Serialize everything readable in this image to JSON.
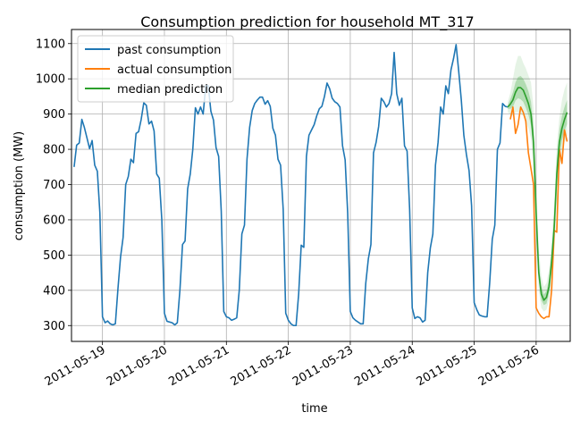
{
  "chart_data": {
    "type": "line",
    "title": "Consumption prediction for household MT_317",
    "xlabel": "time",
    "ylabel": "consumption (MW)",
    "x_unit": "days since 2011-05-19 00:00",
    "xlim": [
      -0.5,
      7.55
    ],
    "ylim": [
      255,
      1140
    ],
    "grid": true,
    "legend_position": "upper left",
    "x_ticks": [
      {
        "value": 0,
        "label": "2011-05-19"
      },
      {
        "value": 1,
        "label": "2011-05-20"
      },
      {
        "value": 2,
        "label": "2011-05-21"
      },
      {
        "value": 3,
        "label": "2011-05-22"
      },
      {
        "value": 4,
        "label": "2011-05-23"
      },
      {
        "value": 5,
        "label": "2011-05-24"
      },
      {
        "value": 6,
        "label": "2011-05-25"
      },
      {
        "value": 7,
        "label": "2011-05-26"
      }
    ],
    "y_ticks": [
      300,
      400,
      500,
      600,
      700,
      800,
      900,
      1000,
      1100
    ],
    "colors": {
      "past": "#1f77b4",
      "actual": "#ff7f0e",
      "median": "#2ca02c",
      "band": "#2ca02c"
    },
    "series": [
      {
        "name": "past consumption",
        "x": [
          -0.458,
          -0.417,
          -0.375,
          -0.333,
          -0.292,
          -0.25,
          -0.208,
          -0.167,
          -0.125,
          -0.083,
          -0.042,
          0.0,
          0.042,
          0.083,
          0.125,
          0.167,
          0.208,
          0.25,
          0.292,
          0.333,
          0.375,
          0.417,
          0.458,
          0.5,
          0.542,
          0.583,
          0.625,
          0.667,
          0.708,
          0.75,
          0.792,
          0.833,
          0.875,
          0.917,
          0.958,
          1.0,
          1.042,
          1.083,
          1.125,
          1.167,
          1.208,
          1.25,
          1.292,
          1.333,
          1.375,
          1.417,
          1.458,
          1.5,
          1.542,
          1.583,
          1.625,
          1.667,
          1.708,
          1.75,
          1.792,
          1.833,
          1.875,
          1.917,
          1.958,
          2.0,
          2.042,
          2.083,
          2.125,
          2.167,
          2.208,
          2.25,
          2.292,
          2.333,
          2.375,
          2.417,
          2.458,
          2.5,
          2.542,
          2.583,
          2.625,
          2.667,
          2.708,
          2.75,
          2.792,
          2.833,
          2.875,
          2.917,
          2.958,
          3.0,
          3.042,
          3.083,
          3.125,
          3.167,
          3.208,
          3.25,
          3.292,
          3.333,
          3.375,
          3.417,
          3.458,
          3.5,
          3.542,
          3.583,
          3.625,
          3.667,
          3.708,
          3.75,
          3.792,
          3.833,
          3.875,
          3.917,
          3.958,
          4.0,
          4.042,
          4.083,
          4.125,
          4.167,
          4.208,
          4.25,
          4.292,
          4.333,
          4.375,
          4.417,
          4.458,
          4.5,
          4.542,
          4.583,
          4.625,
          4.667,
          4.708,
          4.75,
          4.792,
          4.833,
          4.875,
          4.917,
          4.958,
          5.0,
          5.042,
          5.083,
          5.125,
          5.167,
          5.208,
          5.25,
          5.292,
          5.333,
          5.375,
          5.417,
          5.458,
          5.5,
          5.542,
          5.583,
          5.625,
          5.667,
          5.708,
          5.75,
          5.792,
          5.833,
          5.875,
          5.917,
          5.958,
          6.0,
          6.042,
          6.083,
          6.125,
          6.167,
          6.208,
          6.25,
          6.292,
          6.333,
          6.375,
          6.417,
          6.458,
          6.5,
          6.542
        ],
        "values": [
          750,
          812,
          818,
          885,
          862,
          832,
          802,
          825,
          755,
          738,
          620,
          325,
          308,
          313,
          305,
          302,
          305,
          405,
          495,
          550,
          700,
          723,
          772,
          762,
          845,
          850,
          885,
          932,
          925,
          872,
          880,
          852,
          730,
          718,
          600,
          335,
          312,
          310,
          308,
          302,
          308,
          400,
          530,
          540,
          688,
          730,
          800,
          918,
          900,
          920,
          900,
          980,
          980,
          908,
          883,
          805,
          780,
          625,
          340,
          325,
          322,
          315,
          318,
          322,
          400,
          560,
          585,
          772,
          862,
          910,
          930,
          940,
          948,
          948,
          928,
          938,
          922,
          860,
          840,
          772,
          755,
          630,
          335,
          315,
          305,
          300,
          300,
          390,
          528,
          522,
          780,
          840,
          855,
          870,
          895,
          915,
          922,
          950,
          988,
          972,
          945,
          935,
          930,
          920,
          810,
          770,
          620,
          340,
          322,
          315,
          310,
          305,
          305,
          420,
          490,
          530,
          790,
          820,
          865,
          945,
          935,
          920,
          930,
          958,
          1075,
          958,
          925,
          945,
          810,
          795,
          630,
          350,
          320,
          325,
          322,
          310,
          315,
          450,
          520,
          560,
          755,
          820,
          920,
          900,
          980,
          958,
          1025,
          1058,
          1097,
          1022,
          940,
          840,
          785,
          740,
          640,
          365,
          345,
          330,
          327,
          325,
          325,
          420,
          545,
          585,
          800,
          818,
          930,
          922,
          920
        ]
      },
      {
        "name": "actual consumption",
        "x": [
          6.583,
          6.625,
          6.667,
          6.708,
          6.75,
          6.792,
          6.833,
          6.875,
          6.917,
          6.958,
          7.0,
          7.042,
          7.083,
          7.125,
          7.167,
          7.208,
          7.25,
          7.292,
          7.333,
          7.375,
          7.417,
          7.458,
          7.5
        ],
        "values": [
          885,
          920,
          845,
          870,
          920,
          905,
          880,
          790,
          745,
          700,
          350,
          335,
          325,
          320,
          325,
          325,
          400,
          570,
          565,
          800,
          760,
          855,
          822
        ]
      },
      {
        "name": "median prediction",
        "x": [
          6.542,
          6.583,
          6.625,
          6.667,
          6.708,
          6.75,
          6.792,
          6.833,
          6.875,
          6.917,
          6.958,
          7.0,
          7.042,
          7.083,
          7.125,
          7.167,
          7.208,
          7.25,
          7.292,
          7.333,
          7.375,
          7.417,
          7.458,
          7.5
        ],
        "values": [
          920,
          928,
          940,
          962,
          975,
          975,
          968,
          950,
          930,
          900,
          820,
          620,
          450,
          390,
          372,
          380,
          410,
          480,
          580,
          730,
          820,
          860,
          885,
          905
        ]
      }
    ],
    "prediction_bands": [
      {
        "level": "outer",
        "x": [
          6.542,
          6.583,
          6.625,
          6.667,
          6.708,
          6.75,
          6.792,
          6.833,
          6.875,
          6.917,
          6.958,
          7.0,
          7.042,
          7.083,
          7.125,
          7.167,
          7.208,
          7.25,
          7.292,
          7.333,
          7.375,
          7.417,
          7.458,
          7.5
        ],
        "lower": [
          905,
          900,
          895,
          905,
          905,
          900,
          895,
          880,
          860,
          830,
          740,
          560,
          400,
          350,
          340,
          345,
          370,
          420,
          510,
          640,
          740,
          790,
          820,
          840
        ],
        "upper": [
          935,
          960,
          1000,
          1040,
          1065,
          1065,
          1045,
          1030,
          1010,
          990,
          920,
          720,
          520,
          440,
          410,
          420,
          460,
          540,
          650,
          810,
          890,
          940,
          970,
          990
        ]
      },
      {
        "level": "inner",
        "x": [
          6.542,
          6.583,
          6.625,
          6.667,
          6.708,
          6.75,
          6.792,
          6.833,
          6.875,
          6.917,
          6.958,
          7.0,
          7.042,
          7.083,
          7.125,
          7.167,
          7.208,
          7.25,
          7.292,
          7.333,
          7.375,
          7.417,
          7.458,
          7.5
        ],
        "lower": [
          915,
          915,
          920,
          938,
          945,
          942,
          935,
          918,
          898,
          868,
          785,
          595,
          428,
          372,
          358,
          362,
          392,
          452,
          548,
          690,
          780,
          825,
          852,
          872
        ],
        "upper": [
          925,
          942,
          962,
          990,
          1005,
          1008,
          1000,
          985,
          965,
          935,
          860,
          655,
          478,
          412,
          388,
          398,
          432,
          510,
          615,
          770,
          855,
          895,
          920,
          940
        ]
      }
    ]
  }
}
